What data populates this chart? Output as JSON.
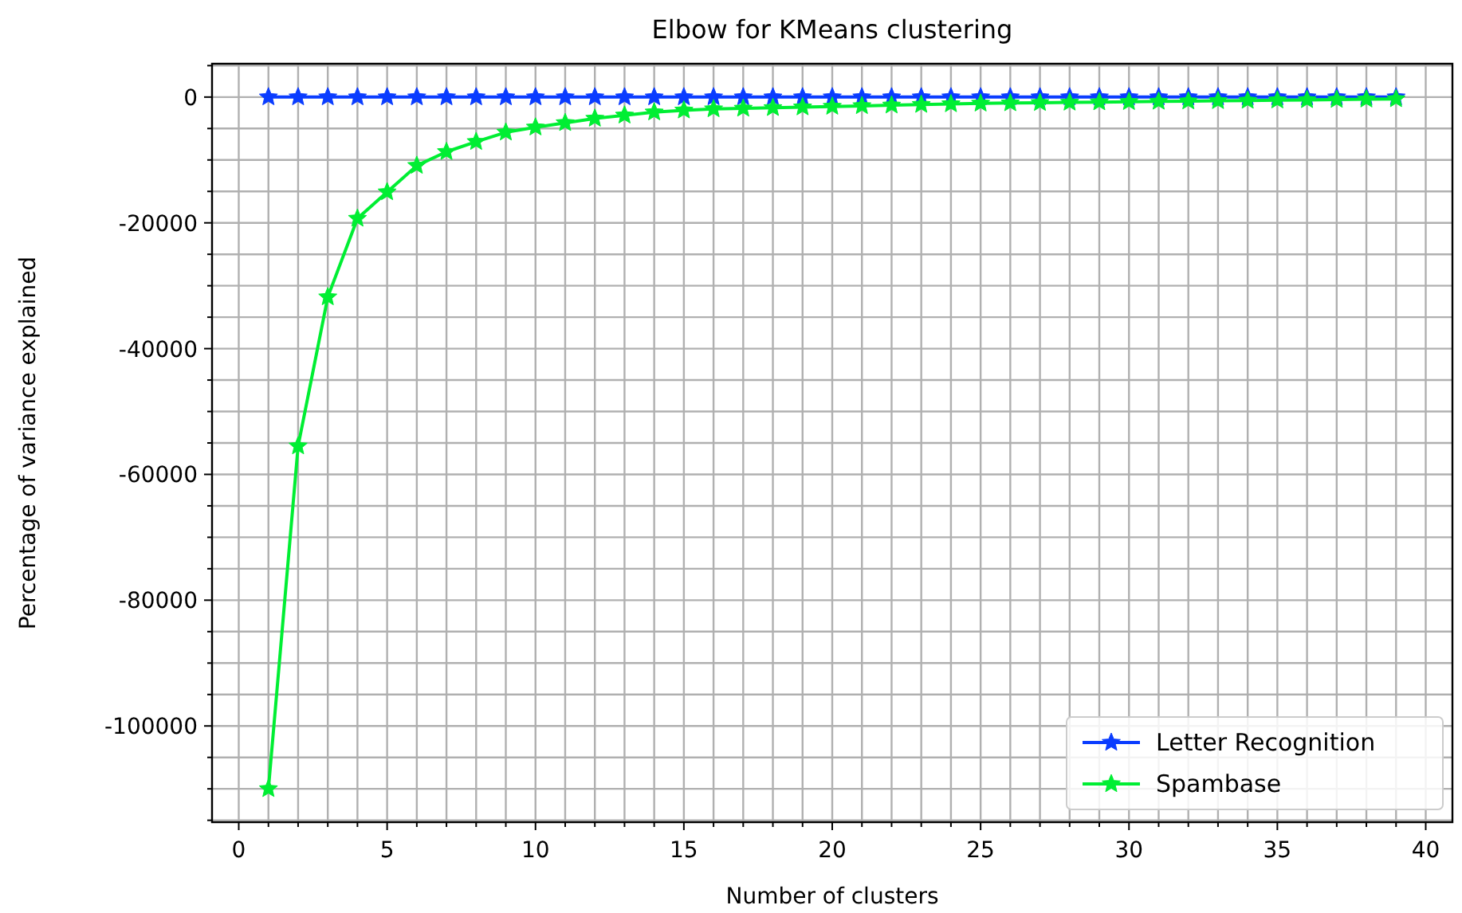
{
  "chart_data": {
    "type": "line",
    "title": "Elbow for KMeans clustering",
    "xlabel": "Number of clusters",
    "ylabel": "Percentage of variance explained",
    "x": [
      1,
      2,
      3,
      4,
      5,
      6,
      7,
      8,
      9,
      10,
      11,
      12,
      13,
      14,
      15,
      16,
      17,
      18,
      19,
      20,
      21,
      22,
      23,
      24,
      25,
      26,
      27,
      28,
      29,
      30,
      31,
      32,
      33,
      34,
      35,
      36,
      37,
      38,
      39
    ],
    "series": [
      {
        "name": "Letter Recognition",
        "color": "#0a3cff",
        "values": [
          0,
          0,
          0,
          0,
          0,
          0,
          0,
          0,
          0,
          0,
          0,
          0,
          0,
          0,
          0,
          0,
          0,
          0,
          0,
          0,
          0,
          0,
          0,
          0,
          0,
          0,
          0,
          0,
          0,
          0,
          0,
          0,
          0,
          0,
          0,
          0,
          0,
          0,
          0
        ]
      },
      {
        "name": "Spambase",
        "color": "#00ee33",
        "values": [
          -110000,
          -55500,
          -31800,
          -19300,
          -15100,
          -10900,
          -8700,
          -7100,
          -5600,
          -4800,
          -4100,
          -3400,
          -2900,
          -2400,
          -2100,
          -1900,
          -1800,
          -1700,
          -1600,
          -1500,
          -1400,
          -1300,
          -1200,
          -1100,
          -1000,
          -950,
          -900,
          -850,
          -800,
          -750,
          -700,
          -650,
          -600,
          -550,
          -500,
          -450,
          -400,
          -350,
          -300
        ]
      }
    ],
    "xlim": [
      -0.9,
      40.9
    ],
    "xticks": [
      0,
      {
        "value": 1,
        "label": null
      },
      {
        "value": 2,
        "label": null
      },
      {
        "value": 3,
        "label": null
      },
      {
        "value": 4,
        "label": null
      },
      5,
      {
        "value": 6,
        "label": null
      },
      {
        "value": 7,
        "label": null
      },
      {
        "value": 8,
        "label": null
      },
      {
        "value": 9,
        "label": null
      },
      10,
      {
        "value": 11,
        "label": null
      },
      {
        "value": 12,
        "label": null
      },
      {
        "value": 13,
        "label": null
      },
      {
        "value": 14,
        "label": null
      },
      15,
      {
        "value": 16,
        "label": null
      },
      {
        "value": 17,
        "label": null
      },
      {
        "value": 18,
        "label": null
      },
      {
        "value": 19,
        "label": null
      },
      20,
      {
        "value": 21,
        "label": null
      },
      {
        "value": 22,
        "label": null
      },
      {
        "value": 23,
        "label": null
      },
      {
        "value": 24,
        "label": null
      },
      25,
      {
        "value": 26,
        "label": null
      },
      {
        "value": 27,
        "label": null
      },
      {
        "value": 28,
        "label": null
      },
      {
        "value": 29,
        "label": null
      },
      30,
      {
        "value": 31,
        "label": null
      },
      {
        "value": 32,
        "label": null
      },
      {
        "value": 33,
        "label": null
      },
      {
        "value": 34,
        "label": null
      },
      35,
      {
        "value": 36,
        "label": null
      },
      {
        "value": 37,
        "label": null
      },
      {
        "value": 38,
        "label": null
      },
      {
        "value": 39,
        "label": null
      },
      40
    ],
    "ylim": [
      -115300,
      5300
    ],
    "yticks": [
      {
        "value": -115000,
        "label": null
      },
      {
        "value": -110000,
        "label": null
      },
      {
        "value": -105000,
        "label": null
      },
      -100000,
      {
        "value": -95000,
        "label": null
      },
      {
        "value": -90000,
        "label": null
      },
      {
        "value": -85000,
        "label": null
      },
      -80000,
      {
        "value": -75000,
        "label": null
      },
      {
        "value": -70000,
        "label": null
      },
      {
        "value": -65000,
        "label": null
      },
      -60000,
      {
        "value": -55000,
        "label": null
      },
      {
        "value": -50000,
        "label": null
      },
      {
        "value": -45000,
        "label": null
      },
      -40000,
      {
        "value": -35000,
        "label": null
      },
      {
        "value": -30000,
        "label": null
      },
      {
        "value": -25000,
        "label": null
      },
      -20000,
      {
        "value": -15000,
        "label": null
      },
      {
        "value": -10000,
        "label": null
      },
      {
        "value": -5000,
        "label": null
      },
      0,
      {
        "value": 5000,
        "label": null
      }
    ],
    "grid": true,
    "legend": "bottom right",
    "marker": "star",
    "line_style": "solid"
  }
}
